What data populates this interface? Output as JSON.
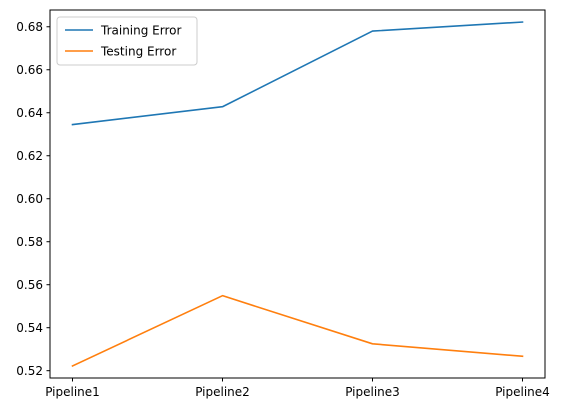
{
  "chart_data": {
    "type": "line",
    "categories": [
      "Pipeline1",
      "Pipeline2",
      "Pipeline3",
      "Pipeline4"
    ],
    "series": [
      {
        "name": "Training Error",
        "color": "#1f77b4",
        "values": [
          0.6345,
          0.6428,
          0.678,
          0.6822
        ]
      },
      {
        "name": "Testing Error",
        "color": "#ff7f0e",
        "values": [
          0.5222,
          0.5549,
          0.5325,
          0.5267
        ]
      }
    ],
    "yticks": [
      "0.52",
      "0.54",
      "0.56",
      "0.58",
      "0.60",
      "0.62",
      "0.64",
      "0.66",
      "0.68"
    ],
    "ylim": [
      0.5166,
      0.6878
    ],
    "title": "",
    "xlabel": "",
    "ylabel": "",
    "grid": false,
    "legend": "upper-left"
  }
}
